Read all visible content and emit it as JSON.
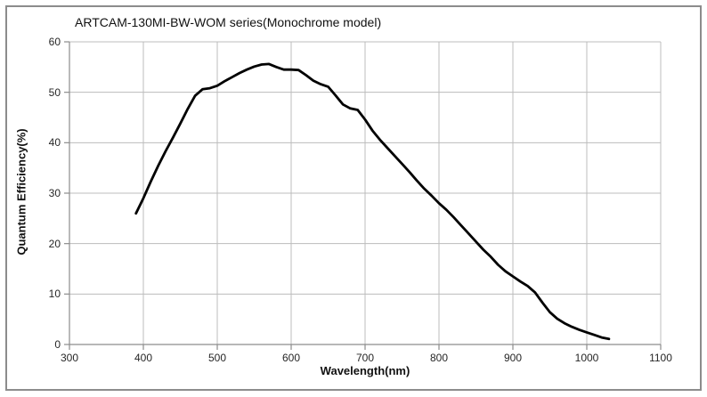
{
  "window": {
    "background_color": "#ffffff",
    "border_color": "#8c8c8c"
  },
  "chart_data": {
    "type": "line",
    "title": "ARTCAM-130MI-BW-WOM series(Monochrome model)",
    "xlabel": "Wavelength(nm)",
    "ylabel": "Quantum Efficiency(%)",
    "xlim": [
      300,
      1100
    ],
    "ylim": [
      0,
      60
    ],
    "x_ticks": [
      300,
      400,
      500,
      600,
      700,
      800,
      900,
      1000,
      1100
    ],
    "y_ticks": [
      0,
      10,
      20,
      30,
      40,
      50,
      60
    ],
    "grid": true,
    "legend_position": "none",
    "line_color": "#000000",
    "grid_color": "#bcbcbc",
    "axis_color": "#8c8c8c",
    "tick_color": "#8c8c8c",
    "series": [
      {
        "x": [
          390,
          400,
          410,
          420,
          430,
          440,
          450,
          460,
          470,
          480,
          490,
          500,
          510,
          520,
          530,
          540,
          550,
          560,
          570,
          580,
          590,
          600,
          610,
          620,
          630,
          640,
          650,
          660,
          670,
          680,
          690,
          700,
          710,
          720,
          730,
          740,
          750,
          760,
          770,
          780,
          790,
          800,
          810,
          820,
          830,
          840,
          850,
          860,
          870,
          880,
          890,
          900,
          910,
          920,
          930,
          940,
          950,
          960,
          970,
          980,
          990,
          1000,
          1010,
          1020,
          1030
        ],
        "y": [
          26.0,
          29.0,
          32.3,
          35.4,
          38.3,
          41.0,
          43.8,
          46.7,
          49.3,
          50.6,
          50.8,
          51.3,
          52.2,
          53.0,
          53.8,
          54.5,
          55.1,
          55.5,
          55.6,
          55.0,
          54.5,
          54.5,
          54.4,
          53.4,
          52.3,
          51.6,
          51.1,
          49.4,
          47.6,
          46.8,
          46.5,
          44.6,
          42.4,
          40.6,
          39.0,
          37.4,
          35.8,
          34.2,
          32.5,
          30.9,
          29.5,
          28.0,
          26.7,
          25.2,
          23.6,
          22.0,
          20.4,
          18.8,
          17.4,
          15.8,
          14.5,
          13.5,
          12.5,
          11.6,
          10.3,
          8.3,
          6.4,
          5.1,
          4.2,
          3.5,
          2.9,
          2.4,
          1.9,
          1.4,
          1.1
        ]
      }
    ]
  }
}
